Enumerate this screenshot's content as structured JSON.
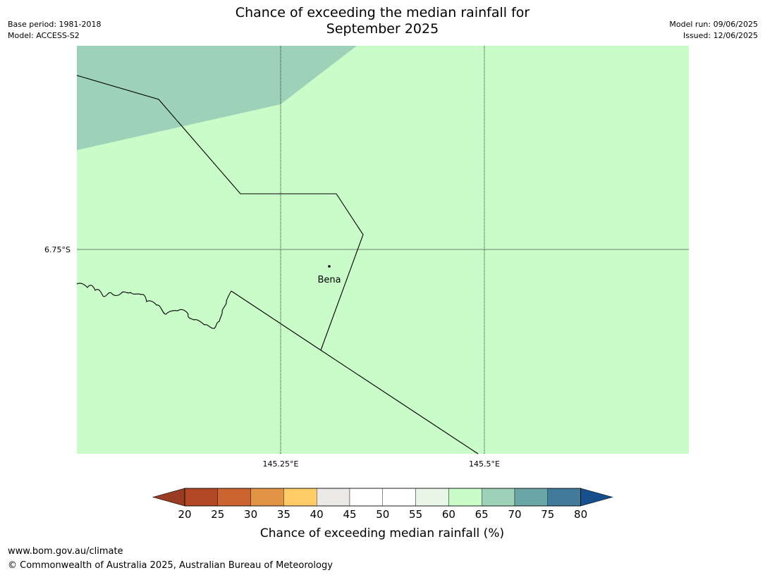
{
  "title_line1": "Chance of exceeding the median rainfall for",
  "title_line2": "September 2025",
  "meta_left": {
    "base_period": "Base period: 1981-2018",
    "model": "Model: ACCESS-S2"
  },
  "meta_right": {
    "model_run": "Model run: 09/06/2025",
    "issued": "Issued: 12/06/2025"
  },
  "map": {
    "lat_labels": [
      "6.75°S"
    ],
    "lon_labels": [
      "145.25°E",
      "145.5°E"
    ],
    "places": [
      {
        "name": "Bena"
      }
    ],
    "fill_main": "#c9fcc9",
    "fill_high": "#9dd1b8"
  },
  "colorbar": {
    "title": "Chance of exceeding median rainfall (%)",
    "ticks": [
      "20",
      "25",
      "30",
      "35",
      "40",
      "45",
      "50",
      "55",
      "60",
      "65",
      "70",
      "75",
      "80"
    ],
    "colors": [
      "#b24826",
      "#cc6431",
      "#e19446",
      "#ffcb66",
      "#ebe9e6",
      "#ffffff",
      "#ffffff",
      "#e8f6e8",
      "#c9fcc9",
      "#9dd1b8",
      "#6ca5a5",
      "#427a9b"
    ],
    "under_color": "#9a3c24",
    "over_color": "#174f8c"
  },
  "footer": {
    "url": "www.bom.gov.au/climate",
    "copyright": "© Commonwealth of Australia 2025, Australian Bureau of Meteorology"
  }
}
